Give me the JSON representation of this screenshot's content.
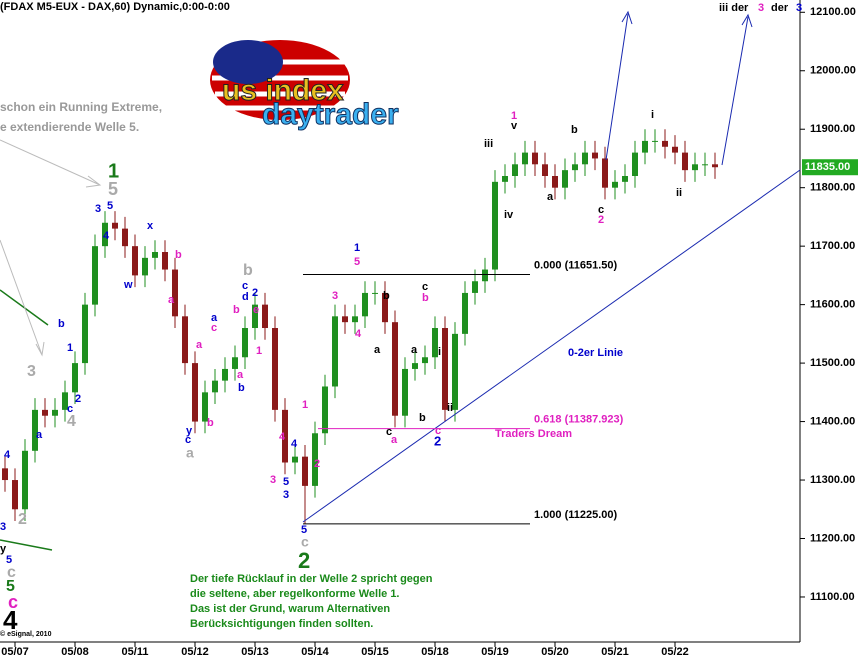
{
  "chart_data": {
    "type": "candlestick",
    "title": "(FDAX M5-EUX - DAX,60) Dynamic,0:00-0:00",
    "categories": [
      null,
      "05/07",
      null,
      null,
      null,
      null,
      null,
      "05/08",
      null,
      null,
      null,
      null,
      null,
      "05/11",
      null,
      null,
      null,
      null,
      null,
      "05/12",
      null,
      null,
      null,
      null,
      null,
      "05/13",
      null,
      null,
      null,
      null,
      null,
      "05/14",
      null,
      null,
      null,
      null,
      null,
      "05/15",
      null,
      null,
      null,
      null,
      null,
      "05/18",
      null,
      null,
      null,
      null,
      null,
      "05/19",
      null,
      null,
      null,
      null,
      null,
      "05/20",
      null,
      null,
      null,
      null,
      null,
      "05/21",
      null,
      null,
      null,
      null,
      null,
      "05/22",
      null,
      null,
      null,
      null
    ],
    "open": [
      11320,
      11300,
      11250,
      11350,
      11420,
      11410,
      11420,
      11450,
      11500,
      11600,
      11700,
      11740,
      11730,
      11700,
      11650,
      11680,
      11690,
      11660,
      11580,
      11500,
      11400,
      11450,
      11470,
      11490,
      11510,
      11560,
      11600,
      11560,
      11420,
      11330,
      11340,
      11290,
      11380,
      11460,
      11580,
      11570,
      11580,
      11620,
      11620,
      11570,
      11410,
      11490,
      11500,
      11510,
      11560,
      11420,
      11550,
      11620,
      11640,
      11660,
      11810,
      11820,
      11840,
      11860,
      11840,
      11820,
      11800,
      11830,
      11840,
      11860,
      11850,
      11800,
      11810,
      11820,
      11860,
      11880,
      11880,
      11870,
      11860,
      11830,
      11840,
      11840
    ],
    "high": [
      11340,
      11320,
      11370,
      11440,
      11440,
      11440,
      11470,
      11520,
      11620,
      11720,
      11760,
      11760,
      11750,
      11720,
      11700,
      11710,
      11710,
      11680,
      11600,
      11520,
      11470,
      11490,
      11510,
      11530,
      11580,
      11620,
      11620,
      11580,
      11440,
      11360,
      11360,
      11400,
      11480,
      11600,
      11600,
      11600,
      11640,
      11640,
      11640,
      11590,
      11510,
      11520,
      11530,
      11580,
      11580,
      11570,
      11640,
      11660,
      11680,
      11830,
      11840,
      11860,
      11880,
      11880,
      11860,
      11840,
      11850,
      11860,
      11880,
      11880,
      11870,
      11830,
      11840,
      11880,
      11900,
      11900,
      11900,
      11890,
      11880,
      11860,
      11860,
      11860
    ],
    "low": [
      11280,
      11230,
      11230,
      11330,
      11390,
      11390,
      11400,
      11430,
      11480,
      11580,
      11680,
      11710,
      11680,
      11630,
      11630,
      11660,
      11640,
      11560,
      11480,
      11380,
      11380,
      11430,
      11450,
      11470,
      11490,
      11540,
      11540,
      11400,
      11310,
      11310,
      11225,
      11270,
      11360,
      11440,
      11550,
      11550,
      11560,
      11600,
      11550,
      11390,
      11390,
      11470,
      11480,
      11490,
      11400,
      11400,
      11530,
      11600,
      11620,
      11640,
      11790,
      11800,
      11820,
      11820,
      11800,
      11780,
      11780,
      11810,
      11820,
      11830,
      11780,
      11780,
      11790,
      11800,
      11840,
      11860,
      11850,
      11840,
      11810,
      11810,
      11820,
      11815
    ],
    "close": [
      11300,
      11250,
      11350,
      11420,
      11410,
      11420,
      11450,
      11500,
      11600,
      11700,
      11740,
      11730,
      11700,
      11650,
      11680,
      11690,
      11660,
      11580,
      11500,
      11400,
      11450,
      11470,
      11490,
      11510,
      11560,
      11600,
      11560,
      11420,
      11330,
      11340,
      11290,
      11380,
      11460,
      11580,
      11570,
      11580,
      11620,
      11620,
      11570,
      11410,
      11490,
      11500,
      11510,
      11560,
      11420,
      11550,
      11620,
      11640,
      11660,
      11810,
      11820,
      11840,
      11860,
      11840,
      11820,
      11800,
      11830,
      11840,
      11860,
      11850,
      11800,
      11810,
      11820,
      11860,
      11880,
      11880,
      11870,
      11860,
      11830,
      11840,
      11840,
      11835
    ],
    "up_color": "#1f8f1f",
    "down_color": "#8b1a1a",
    "ylim": [
      11023,
      12121
    ],
    "yticks": [
      {
        "value": 11100,
        "label": "11100.00"
      },
      {
        "value": 11200,
        "label": "11200.00"
      },
      {
        "value": 11300,
        "label": "11300.00"
      },
      {
        "value": 11400,
        "label": "11400.00"
      },
      {
        "value": 11500,
        "label": "11500.00"
      },
      {
        "value": 11600,
        "label": "11600.00"
      },
      {
        "value": 11700,
        "label": "11700.00"
      },
      {
        "value": 11800,
        "label": "11800.00"
      },
      {
        "value": 11900,
        "label": "11900.00"
      },
      {
        "value": 12000,
        "label": "12000.00"
      },
      {
        "value": 12100,
        "label": "12100.00"
      }
    ],
    "last_price": {
      "value": 11835,
      "label": "11835.00"
    },
    "levels": [
      {
        "value": 11651.5,
        "label": "0.000 (11651.50)",
        "color": "#000000"
      },
      {
        "value": 11387.923,
        "label": "0.618 (11387.923)",
        "color": "#e020c0"
      },
      {
        "value": 11225,
        "label": "1.000 (11225.00)",
        "color": "#000000"
      }
    ],
    "annotations": [
      {
        "text": "schon ein Running Extreme,",
        "color": "#999999"
      },
      {
        "text": "e extendierende Welle 5.",
        "color": "#999999"
      },
      {
        "text": "1",
        "color": "#1a7a1a"
      },
      {
        "text": "5",
        "color": "#aaaaaa"
      },
      {
        "text": "3",
        "color": "#0000cc"
      },
      {
        "text": "5",
        "color": "#0000cc"
      },
      {
        "text": "4",
        "color": "#0000cc"
      },
      {
        "text": "x",
        "color": "#0000cc"
      },
      {
        "text": "w",
        "color": "#0000cc"
      },
      {
        "text": "b",
        "color": "#e020c0"
      },
      {
        "text": "a",
        "color": "#e020c0"
      },
      {
        "text": "b",
        "color": "#0000cc"
      },
      {
        "text": "1",
        "color": "#0000cc"
      },
      {
        "text": "2",
        "color": "#0000cc"
      },
      {
        "text": "c",
        "color": "#0000cc"
      },
      {
        "text": "a",
        "color": "#0000cc"
      },
      {
        "text": "3",
        "color": "#aaaaaa"
      },
      {
        "text": "4",
        "color": "#aaaaaa"
      },
      {
        "text": "4",
        "color": "#0000cc"
      },
      {
        "text": "3",
        "color": "#0000cc"
      },
      {
        "text": "2",
        "color": "#aaaaaa"
      },
      {
        "text": "y",
        "color": "#000000"
      },
      {
        "text": "5",
        "color": "#0000cc"
      },
      {
        "text": "c",
        "color": "#aaaaaa"
      },
      {
        "text": "5",
        "color": "#1a7a1a"
      },
      {
        "text": "c",
        "color": "#e020c0"
      },
      {
        "text": "4",
        "color": "#000000"
      },
      {
        "text": "© eSignal, 2010",
        "color": "#000000"
      },
      {
        "text": "a",
        "color": "#0000cc"
      },
      {
        "text": "c",
        "color": "#e020c0"
      },
      {
        "text": "b",
        "color": "#aaaaaa"
      },
      {
        "text": "c",
        "color": "#0000cc"
      },
      {
        "text": "b",
        "color": "#e020c0"
      },
      {
        "text": "d",
        "color": "#0000cc"
      },
      {
        "text": "2",
        "color": "#0000cc"
      },
      {
        "text": "e",
        "color": "#e020c0"
      },
      {
        "text": "a",
        "color": "#e020c0"
      },
      {
        "text": "a",
        "color": "#e020c0"
      },
      {
        "text": "1",
        "color": "#e020c0"
      },
      {
        "text": "b",
        "color": "#0000cc"
      },
      {
        "text": "b",
        "color": "#e020c0"
      },
      {
        "text": "c",
        "color": "#0000cc"
      },
      {
        "text": "y",
        "color": "#0000cc"
      },
      {
        "text": "a",
        "color": "#aaaaaa"
      },
      {
        "text": "3",
        "color": "#e020c0"
      },
      {
        "text": "4",
        "color": "#e020c0"
      },
      {
        "text": "4",
        "color": "#0000cc"
      },
      {
        "text": "5",
        "color": "#0000cc"
      },
      {
        "text": "3",
        "color": "#0000cc"
      },
      {
        "text": "2",
        "color": "#e020c0"
      },
      {
        "text": "1",
        "color": "#e020c0"
      },
      {
        "text": "5",
        "color": "#0000cc"
      },
      {
        "text": "c",
        "color": "#aaaaaa"
      },
      {
        "text": "2",
        "color": "#1a7a1a"
      },
      {
        "text": "1",
        "color": "#0000cc"
      },
      {
        "text": "5",
        "color": "#e020c0"
      },
      {
        "text": "3",
        "color": "#e020c0"
      },
      {
        "text": "4",
        "color": "#e020c0"
      },
      {
        "text": "b",
        "color": "#000000"
      },
      {
        "text": "a",
        "color": "#000000"
      },
      {
        "text": "c",
        "color": "#000000"
      },
      {
        "text": "a",
        "color": "#e020c0"
      },
      {
        "text": "a",
        "color": "#000000"
      },
      {
        "text": "c",
        "color": "#000000"
      },
      {
        "text": "b",
        "color": "#e020c0"
      },
      {
        "text": "i",
        "color": "#000000"
      },
      {
        "text": "b",
        "color": "#000000"
      },
      {
        "text": "ii",
        "color": "#000000"
      },
      {
        "text": "c",
        "color": "#e020c0"
      },
      {
        "text": "2",
        "color": "#0000cc"
      },
      {
        "text": "iii",
        "color": "#000000"
      },
      {
        "text": "1",
        "color": "#e020c0"
      },
      {
        "text": "v",
        "color": "#000000"
      },
      {
        "text": "iv",
        "color": "#000000"
      },
      {
        "text": "a",
        "color": "#000000"
      },
      {
        "text": "b",
        "color": "#000000"
      },
      {
        "text": "c",
        "color": "#000000"
      },
      {
        "text": "2",
        "color": "#e020c0"
      },
      {
        "text": "i",
        "color": "#000000"
      },
      {
        "text": "ii",
        "color": "#000000"
      },
      {
        "text": "Traders Dream",
        "color": "#e020c0"
      },
      {
        "text": "0-2er Linie",
        "color": "#0000cc"
      },
      {
        "text": "iii der",
        "color": "#000000"
      },
      {
        "text": "3",
        "color": "#e020c0"
      },
      {
        "text": "der",
        "color": "#000000"
      },
      {
        "text": "3",
        "color": "#0000cc"
      }
    ],
    "note": [
      "Der tiefe Rücklauf in der Welle 2 spricht gegen",
      "die seltene, aber regelkonforme Welle 1.",
      "Das ist der Grund, warum Alternativen",
      "Berücksichtigungen finden sollten."
    ],
    "logo": [
      "us index",
      "daytrader"
    ]
  }
}
